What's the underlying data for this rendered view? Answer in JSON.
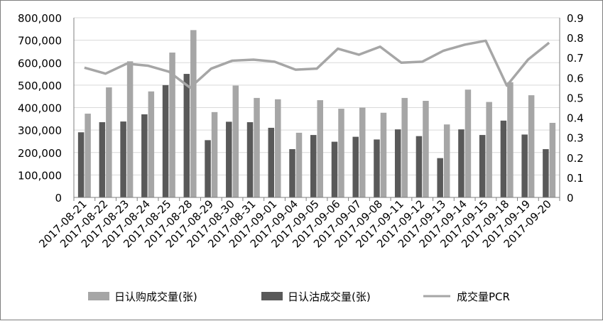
{
  "chart_data": {
    "type": "bar",
    "title": "",
    "xlabel": "",
    "ylabel": "",
    "ylim": [
      0,
      800000
    ],
    "y2lim": [
      0,
      0.9
    ],
    "grid": true,
    "legend_position": "bottom",
    "categories": [
      "2017-08-21",
      "2017-08-22",
      "2017-08-23",
      "2017-08-24",
      "2017-08-25",
      "2017-08-28",
      "2017-08-29",
      "2017-08-30",
      "2017-08-31",
      "2017-09-01",
      "2017-09-04",
      "2017-09-05",
      "2017-09-06",
      "2017-09-07",
      "2017-09-08",
      "2017-09-11",
      "2017-09-12",
      "2017-09-13",
      "2017-09-14",
      "2017-09-15",
      "2017-09-18",
      "2017-09-19",
      "2017-09-20"
    ],
    "y_ticks": [
      "0",
      "100,000",
      "200,000",
      "300,000",
      "400,000",
      "500,000",
      "600,000",
      "700,000",
      "800,000"
    ],
    "y2_ticks": [
      "0",
      "0.1",
      "0.2",
      "0.3",
      "0.4",
      "0.5",
      "0.6",
      "0.7",
      "0.8",
      "0.9"
    ],
    "series": [
      {
        "name": "日认沽成交量(张)",
        "type": "bar",
        "axis": "left",
        "color": "#595959",
        "values": [
          290000,
          335000,
          338000,
          370000,
          500000,
          550000,
          255000,
          337000,
          335000,
          310000,
          215000,
          278000,
          248000,
          270000,
          258000,
          303000,
          273000,
          175000,
          303000,
          278000,
          342000,
          280000,
          215000
        ]
      },
      {
        "name": "日认购成交量(张)",
        "type": "bar",
        "axis": "left",
        "color": "#a6a6a6",
        "values": [
          373000,
          490000,
          606000,
          472000,
          645000,
          745000,
          380000,
          498000,
          443000,
          437000,
          288000,
          433000,
          395000,
          400000,
          377000,
          443000,
          430000,
          325000,
          480000,
          425000,
          513000,
          455000,
          332000
        ]
      },
      {
        "name": "成交量PCR",
        "type": "line",
        "axis": "right",
        "color": "#a6a6a6",
        "values": [
          0.65,
          0.62,
          0.67,
          0.66,
          0.63,
          0.55,
          0.645,
          0.685,
          0.69,
          0.68,
          0.64,
          0.645,
          0.745,
          0.715,
          0.755,
          0.675,
          0.68,
          0.735,
          0.765,
          0.785,
          0.56,
          0.69,
          0.775
        ]
      }
    ],
    "legend": [
      "日认购成交量(张)",
      "日认沽成交量(张)",
      "成交量PCR"
    ]
  }
}
